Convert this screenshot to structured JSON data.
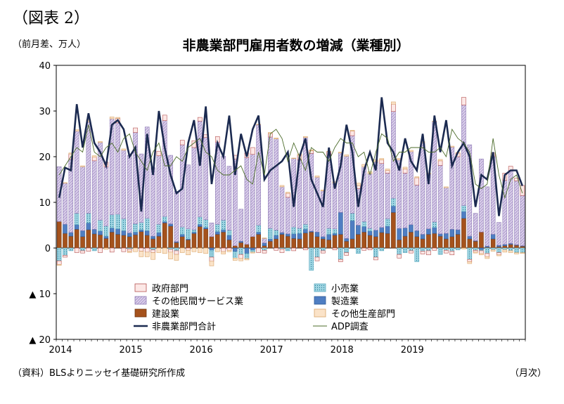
{
  "figure_label": "（図表 2）",
  "unit_label": "（前月差、万人）",
  "source_label": "（資料）BLSよりニッセイ基礎研究所作成",
  "x_unit_label": "（月次）",
  "colors": {
    "government": "#fce8e6",
    "retail": "#9fd5e2",
    "other_services": "#d9cdea",
    "manufacturing": "#4f7ec2",
    "construction": "#a5521c",
    "other_goods": "#fbe3c8",
    "total_line": "#1b2a50",
    "adp_line": "#4b6b2a"
  },
  "chart_data": {
    "type": "bar",
    "stacked": true,
    "title": "非農業部門雇用者数の増減（業種別）",
    "ylabel": "（前月差、万人）",
    "xlabel": "（月次）",
    "ylim": [
      -20,
      40
    ],
    "yticks": [
      40,
      30,
      20,
      10,
      0,
      -10,
      -20
    ],
    "ytick_labels": [
      "40",
      "30",
      "20",
      "10",
      "0",
      "▲ 10",
      "▲ 20"
    ],
    "x_start": "2014-01",
    "x_tick_labels": [
      "2014",
      "2015",
      "2016",
      "2017",
      "2018",
      "2019"
    ],
    "legend": {
      "placement": "bottom-center, two columns",
      "entries": [
        "政府部門",
        "小売業",
        "その他民間サービス業",
        "製造業",
        "建設業",
        "その他生産部門",
        "非農業部門合計",
        "ADP調査"
      ]
    },
    "series": [
      {
        "name": "建設業",
        "key": "construction",
        "values": [
          5.8,
          3.2,
          2.6,
          4.1,
          2.5,
          4.0,
          3.1,
          2.9,
          2.1,
          3.5,
          3.0,
          2.8,
          2.5,
          2.9,
          3.6,
          2.8,
          2.0,
          2.6,
          5.5,
          4.8,
          1.2,
          2.5,
          1.8,
          3.2,
          4.7,
          4.2,
          2.5,
          3.0,
          3.5,
          1.8,
          0.5,
          1.2,
          0.8,
          2.5,
          3.0,
          0.5,
          1.5,
          2.0,
          3.0,
          2.6,
          2.1,
          2.0,
          3.3,
          3.5,
          2.5,
          2.0,
          1.8,
          2.8,
          3.0,
          1.5,
          2.0,
          3.0,
          3.5,
          2.8,
          2.5,
          3.4,
          3.2,
          7.8,
          1.8,
          2.6,
          3.5,
          2.5,
          2.0,
          3.0,
          3.2,
          2.6,
          2.0,
          2.5,
          3.0,
          6.5,
          2.0,
          1.5,
          3.5,
          0.2,
          2.0,
          0.3,
          0.5,
          0.8,
          0.6,
          0.4
        ]
      },
      {
        "name": "製造業",
        "key": "manufacturing",
        "values": [
          0,
          2.0,
          0.8,
          1.0,
          1.3,
          1.5,
          1.0,
          0.8,
          0.5,
          0.9,
          1.2,
          1.0,
          0.8,
          0.6,
          0.4,
          1.0,
          0.6,
          0.8,
          0.3,
          0.5,
          0.2,
          0.5,
          0.2,
          0.3,
          0.5,
          0.3,
          -0.5,
          0.6,
          0.5,
          1.0,
          -0.8,
          0.3,
          -1.2,
          -0.5,
          0.5,
          0.6,
          0.5,
          0.8,
          0.4,
          0.5,
          1.0,
          1.2,
          0.8,
          0.2,
          1.0,
          0.5,
          1.2,
          0.4,
          4.8,
          0.6,
          4.0,
          2.0,
          1.2,
          0.9,
          1.4,
          1.1,
          1.6,
          1.4,
          2.5,
          1.8,
          1.6,
          1.3,
          1.0,
          1.2,
          1.3,
          0.5,
          1.2,
          1.6,
          1.0,
          1.5,
          0.6,
          0.1,
          -0.4,
          0.2,
          1.0,
          0.3,
          0.3,
          0.2,
          0.1,
          0.1
        ]
      },
      {
        "name": "小売業",
        "key": "retail",
        "values": [
          -2.8,
          -1.6,
          -0.6,
          2.5,
          -0.6,
          2.1,
          -0.6,
          2.4,
          2.2,
          2.9,
          3.2,
          2.6,
          -0.2,
          1.8,
          1.6,
          2.7,
          -0.4,
          1.8,
          1.1,
          -0.3,
          -0.6,
          1.6,
          2.2,
          0.5,
          1.6,
          1.7,
          -1.5,
          1.6,
          2.1,
          1.1,
          -1.4,
          -1.4,
          -1.1,
          -0.4,
          1.5,
          -0.5,
          2.3,
          1.1,
          -0.2,
          -0.6,
          1.5,
          1.1,
          1.1,
          -4.9,
          -2.0,
          -0.6,
          1.3,
          1.0,
          -2.5,
          -1.0,
          1.6,
          -1.2,
          1.1,
          0.6,
          -2.0,
          -0.6,
          1.6,
          1.7,
          -1.4,
          -1.0,
          -0.6,
          -3.0,
          -0.7,
          -0.6,
          1.2,
          -1.4,
          -0.5,
          -0.7,
          -0.4,
          1.3,
          -2.5,
          -0.5,
          -0.2,
          -1.2,
          -0.4,
          -1.0,
          -0.4,
          -0.6,
          -1.0,
          -1.0
        ]
      },
      {
        "name": "その他民間サービス業",
        "key": "other_services",
        "values": [
          12.0,
          9.0,
          16.0,
          18.0,
          14.0,
          20.0,
          15.0,
          17.0,
          13.0,
          21.0,
          20.0,
          15.0,
          17.0,
          20.0,
          15.0,
          20.0,
          15.0,
          15.0,
          21.0,
          15.0,
          11.0,
          18.0,
          14.0,
          18.0,
          21.0,
          18.0,
          3.0,
          18.0,
          14.0,
          14.0,
          19.0,
          7.0,
          19.0,
          18.0,
          22.0,
          1.0,
          20.0,
          20.0,
          10.0,
          8.0,
          15.0,
          15.0,
          19.0,
          17.0,
          12.0,
          10.0,
          16.0,
          10.0,
          13.0,
          18.0,
          17.0,
          8.0,
          12.0,
          12.0,
          15.0,
          14.0,
          10.0,
          19.0,
          15.0,
          12.0,
          16.0,
          10.0,
          20.0,
          12.0,
          22.0,
          15.0,
          10.0,
          18.0,
          16.0,
          22.0,
          20.0,
          6.0,
          16.0,
          13.0,
          17.0,
          5.0,
          14.0,
          16.0,
          14.0,
          11.0
        ]
      },
      {
        "name": "政府部門",
        "key": "government",
        "values": [
          -0.8,
          -0.4,
          1.2,
          -1.0,
          -0.5,
          -0.7,
          0.8,
          -1.0,
          1.0,
          -0.9,
          1.0,
          -0.8,
          -0.5,
          1.0,
          -0.7,
          -0.9,
          -0.6,
          1.0,
          1.2,
          -0.6,
          -0.8,
          1.0,
          -0.5,
          1.5,
          0.8,
          0.6,
          -0.9,
          1.2,
          -0.8,
          -0.5,
          0.8,
          -0.9,
          1.0,
          1.5,
          -1.0,
          -0.6,
          0.8,
          -0.5,
          -0.8,
          0.9,
          -0.6,
          1.0,
          -0.4,
          0.6,
          -0.8,
          -0.5,
          0.8,
          -0.4,
          -0.5,
          -0.6,
          1.0,
          0.7,
          -0.5,
          -0.4,
          -0.6,
          0.8,
          0.6,
          1.6,
          -0.8,
          0.9,
          -0.5,
          1.6,
          -0.6,
          -0.9,
          -0.5,
          1.0,
          -0.6,
          -0.8,
          0.8,
          1.7,
          -0.5,
          -0.4,
          -0.6,
          -0.7,
          0.8,
          -0.5,
          1.6,
          0.9,
          0.6,
          2.2
        ]
      },
      {
        "name": "その他生産部門",
        "key": "other_goods",
        "values": [
          -0.2,
          0.1,
          0.2,
          0.3,
          0.2,
          0.5,
          0.3,
          0.2,
          -0.3,
          0.4,
          0.2,
          0.3,
          -0.3,
          -0.8,
          -1.2,
          -1.0,
          -1.5,
          -1.0,
          -1.2,
          -1.5,
          -1.3,
          -1.0,
          -1.0,
          -0.8,
          -1.0,
          -1.2,
          -1.0,
          -0.8,
          -0.5,
          -0.3,
          -0.5,
          -0.5,
          -0.3,
          -0.2,
          0.1,
          0.1,
          0.2,
          0.2,
          0.3,
          0.2,
          0.1,
          0.3,
          0.2,
          0.2,
          0.3,
          0.2,
          0.1,
          0.3,
          0.2,
          0.3,
          0.2,
          0.5,
          0.5,
          0.4,
          0.4,
          0.3,
          0.3,
          0.5,
          0.3,
          0.4,
          0.3,
          0.2,
          0.3,
          0.2,
          0.1,
          0.3,
          0.2,
          0.2,
          0.1,
          -0.2,
          -0.4,
          -0.2,
          -0.3,
          -0.4,
          -0.3,
          -0.2,
          -0.5,
          -0.4,
          -0.3,
          -0.2
        ]
      }
    ],
    "lines": [
      {
        "name": "非農業部門合計",
        "key": "total",
        "values": [
          11.0,
          17.6,
          17.0,
          31.5,
          22.0,
          29.5,
          23.0,
          21.0,
          18.0,
          27.0,
          28.0,
          26.0,
          20.0,
          22.0,
          8.0,
          25.0,
          16.0,
          30.0,
          22.0,
          16.0,
          12.0,
          13.0,
          23.0,
          28.0,
          18.0,
          31.0,
          14.0,
          23.0,
          20.0,
          29.0,
          16.0,
          25.0,
          20.0,
          26.0,
          29.0,
          15.0,
          17.0,
          18.0,
          19.0,
          21.0,
          9.0,
          20.0,
          24.0,
          15.0,
          12.0,
          9.0,
          22.0,
          13.0,
          18.0,
          27.0,
          21.0,
          9.0,
          17.0,
          21.0,
          17.0,
          33.0,
          23.0,
          21.0,
          17.0,
          24.0,
          19.0,
          17.0,
          25.0,
          14.0,
          29.0,
          21.0,
          28.0,
          18.0,
          21.0,
          23.0,
          20.0,
          9.0,
          16.0,
          15.0,
          21.0,
          7.0,
          16.0,
          17.0,
          17.0,
          13.6
        ]
      },
      {
        "name": "ADP調査",
        "key": "adp",
        "values": [
          16.0,
          18.0,
          20.0,
          22.0,
          21.0,
          27.0,
          21.0,
          20.0,
          22.0,
          23.0,
          21.0,
          24.0,
          25.0,
          21.0,
          19.0,
          17.0,
          21.0,
          23.0,
          18.0,
          18.0,
          20.0,
          19.0,
          22.0,
          23.0,
          24.0,
          21.0,
          20.0,
          17.0,
          16.0,
          16.0,
          17.0,
          18.0,
          15.0,
          14.0,
          21.0,
          16.0,
          25.0,
          26.0,
          24.0,
          19.0,
          23.0,
          20.0,
          17.0,
          22.0,
          21.0,
          21.0,
          19.0,
          22.0,
          24.0,
          23.0,
          23.0,
          20.0,
          21.0,
          16.0,
          21.0,
          25.0,
          24.0,
          19.0,
          21.0,
          21.0,
          22.0,
          22.0,
          22.0,
          21.0,
          21.0,
          22.0,
          20.0,
          26.0,
          24.0,
          23.0,
          21.0,
          14.0,
          13.0,
          14.0,
          24.0,
          16.0,
          11.0,
          15.0,
          16.0,
          12.0
        ]
      }
    ]
  }
}
